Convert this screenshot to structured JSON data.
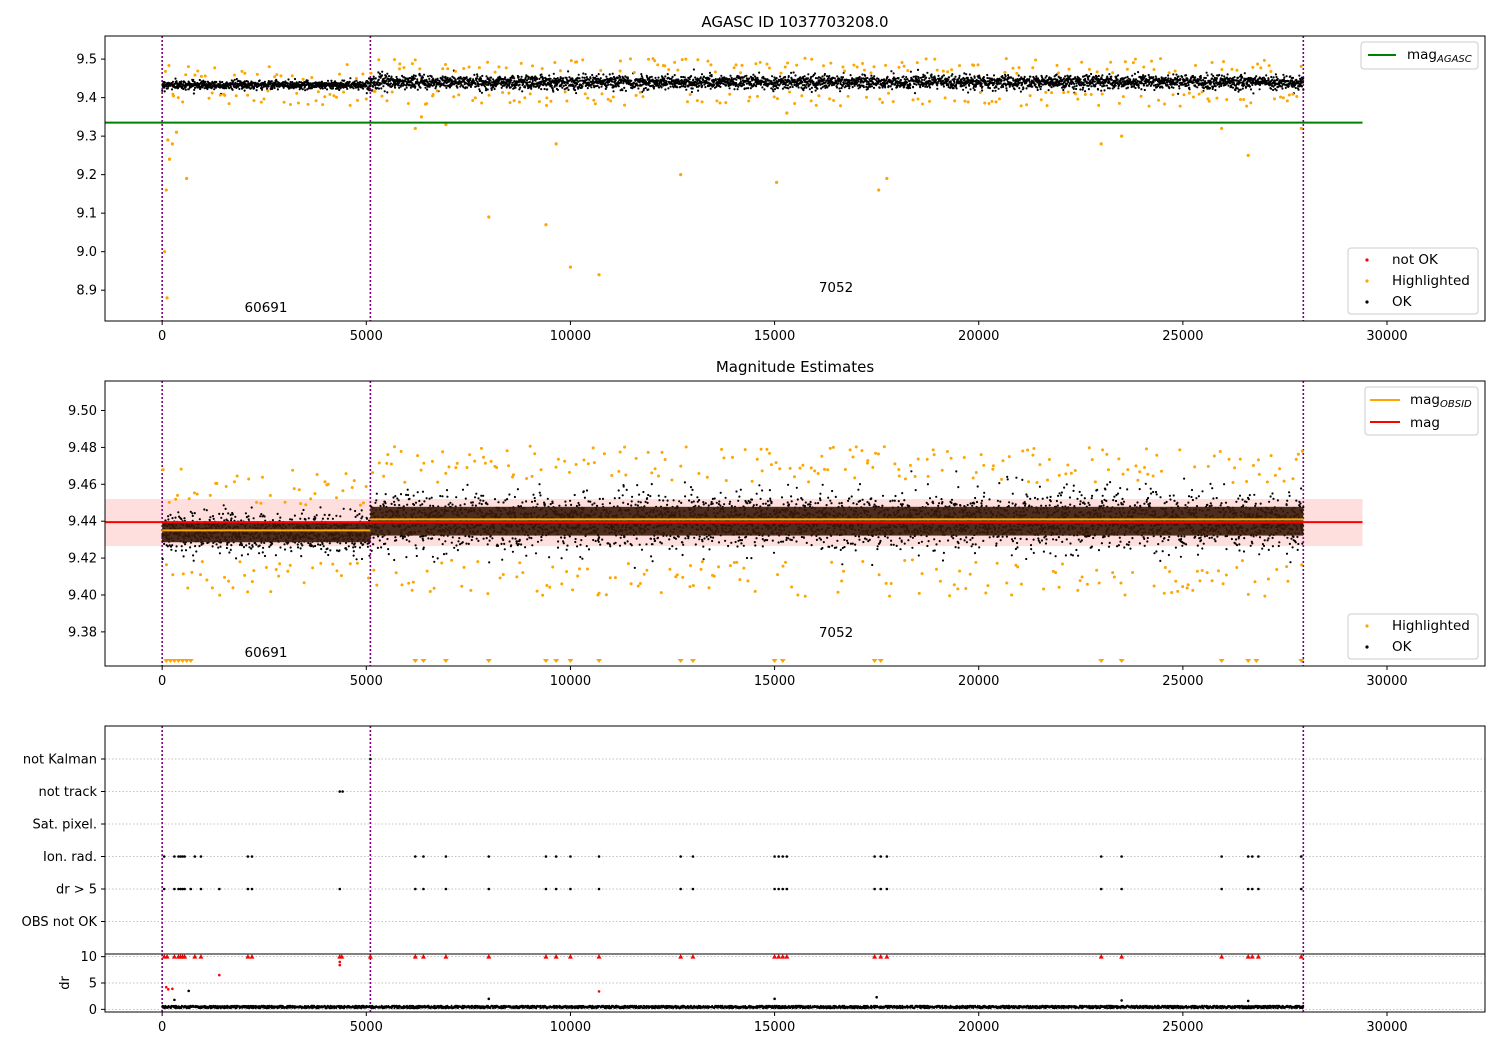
{
  "chart_data": [
    {
      "type": "scatter",
      "title": "AGASC ID 1037703208.0",
      "xlim": [
        -1400,
        32400
      ],
      "ylim": [
        8.82,
        9.56
      ],
      "xticks": [
        0,
        5000,
        10000,
        15000,
        20000,
        25000,
        30000
      ],
      "xtick_labels": [
        "0",
        "5000",
        "10000",
        "15000",
        "20000",
        "25000",
        "30000"
      ],
      "yticks": [
        8.9,
        9.0,
        9.1,
        9.2,
        9.3,
        9.4,
        9.5
      ],
      "ytick_labels": [
        "8.9",
        "9.0",
        "9.1",
        "9.2",
        "9.3",
        "9.4",
        "9.5"
      ],
      "obs_boundaries": [
        0,
        5100,
        27950
      ],
      "agasc_mag": 9.335,
      "agasc_mag_x_range": [
        -1400,
        29400
      ],
      "observations": [
        {
          "x_range": [
            0,
            5100
          ],
          "mean": 9.433,
          "spread": 0.01
        },
        {
          "x_range": [
            5100,
            27950
          ],
          "mean": 9.44,
          "spread": 0.016
        }
      ],
      "highlighted_outliers": [
        [
          60,
          9.0
        ],
        [
          120,
          8.88
        ],
        [
          100,
          9.16
        ],
        [
          180,
          9.24
        ],
        [
          250,
          9.28
        ],
        [
          350,
          9.31
        ],
        [
          600,
          9.19
        ],
        [
          140,
          9.29
        ],
        [
          6200,
          9.32
        ],
        [
          6350,
          9.35
        ],
        [
          6950,
          9.33
        ],
        [
          8000,
          9.09
        ],
        [
          9400,
          9.07
        ],
        [
          9650,
          9.28
        ],
        [
          10000,
          8.96
        ],
        [
          10700,
          8.94
        ],
        [
          12700,
          9.2
        ],
        [
          15050,
          9.18
        ],
        [
          15300,
          9.36
        ],
        [
          17550,
          9.16
        ],
        [
          17750,
          9.19
        ],
        [
          23000,
          9.28
        ],
        [
          23500,
          9.3
        ],
        [
          25950,
          9.32
        ],
        [
          26600,
          9.25
        ],
        [
          27900,
          9.32
        ]
      ],
      "annotations": [
        {
          "text": "60691",
          "x": 2550,
          "y": 8.85
        },
        {
          "text": "7052",
          "x": 16550,
          "y": 8.9
        }
      ],
      "legend_upper": {
        "position": "upper right",
        "entries": [
          {
            "label": "mag",
            "subscript": "AGASC",
            "color": "#008000"
          }
        ]
      },
      "legend_lower": {
        "position": "lower right",
        "entries": [
          {
            "label": "not OK",
            "color": "#ff0000"
          },
          {
            "label": "Highlighted",
            "color": "#ffa500"
          },
          {
            "label": "OK",
            "color": "#000000"
          }
        ]
      }
    },
    {
      "type": "scatter",
      "title": "Magnitude Estimates",
      "xlim": [
        -1400,
        32400
      ],
      "ylim": [
        9.3615,
        9.516
      ],
      "xticks": [
        0,
        5000,
        10000,
        15000,
        20000,
        25000,
        30000
      ],
      "xtick_labels": [
        "0",
        "5000",
        "10000",
        "15000",
        "20000",
        "25000",
        "30000"
      ],
      "yticks": [
        9.38,
        9.4,
        9.42,
        9.44,
        9.46,
        9.48,
        9.5
      ],
      "ytick_labels": [
        "9.38",
        "9.40",
        "9.42",
        "9.44",
        "9.46",
        "9.48",
        "9.50"
      ],
      "obs_boundaries": [
        0,
        5100,
        27950
      ],
      "mag": 9.4395,
      "mag_band": [
        9.4265,
        9.452
      ],
      "mag_x_range": [
        -1400,
        29400
      ],
      "mag_obsid": [
        {
          "x_range": [
            0,
            5100
          ],
          "value": 9.435
        },
        {
          "x_range": [
            5100,
            27950
          ],
          "value": 9.441
        }
      ],
      "observations": [
        {
          "x_range": [
            0,
            5100
          ],
          "mean": 9.434,
          "spread": 0.009
        },
        {
          "x_range": [
            5100,
            27950
          ],
          "mean": 9.44,
          "spread": 0.013
        }
      ],
      "clipped_marker_x": [
        100,
        200,
        300,
        400,
        500,
        600,
        700,
        6200,
        6400,
        6950,
        8000,
        9400,
        9650,
        10000,
        10700,
        12700,
        13000,
        15000,
        15200,
        17450,
        17600,
        23000,
        23500,
        25950,
        26600,
        26800,
        27900
      ],
      "annotations": [
        {
          "text": "60691",
          "x": 2550,
          "y": 9.367
        },
        {
          "text": "7052",
          "x": 16550,
          "y": 9.379
        }
      ],
      "legend_upper": {
        "position": "upper right",
        "entries": [
          {
            "label": "mag",
            "subscript": "OBSID",
            "color": "#ffa500"
          },
          {
            "label": "mag",
            "subscript": "",
            "color": "#ff0000"
          }
        ]
      },
      "legend_lower": {
        "position": "lower right",
        "entries": [
          {
            "label": "Highlighted",
            "color": "#ffa500"
          },
          {
            "label": "OK",
            "color": "#000000"
          }
        ]
      }
    },
    {
      "type": "scatter",
      "title": "",
      "xlim": [
        -1400,
        32400
      ],
      "categories": [
        "not Kalman",
        "not track",
        "Sat. pixel.",
        "Ion. rad.",
        "dr > 5",
        "OBS not OK"
      ],
      "obs_boundaries": [
        0,
        5100,
        27950
      ],
      "flag_points": {
        "not Kalman": [
          5100
        ],
        "not track": [
          4350,
          4420
        ],
        "Sat. pixel.": [],
        "Ion. rad.": [
          50,
          300,
          400,
          450,
          500,
          550,
          800,
          950,
          2100,
          2200,
          6200,
          6400,
          6950,
          8000,
          9400,
          9650,
          10000,
          10700,
          12700,
          13000,
          15000,
          15100,
          15200,
          15300,
          17450,
          17600,
          17750,
          23000,
          23500,
          25950,
          26600,
          26700,
          26850,
          27900
        ],
        "dr > 5": [
          50,
          300,
          400,
          450,
          500,
          550,
          700,
          950,
          1400,
          2100,
          2200,
          4350,
          6200,
          6400,
          6950,
          8000,
          9400,
          9650,
          10000,
          10700,
          12700,
          13000,
          15000,
          15100,
          15200,
          15300,
          17450,
          17600,
          17750,
          23000,
          23500,
          25950,
          26600,
          26700,
          26850,
          27900
        ],
        "OBS not OK": []
      },
      "dr_subplot": {
        "ylabel": "dr",
        "ylim": [
          -0.5,
          10.5
        ],
        "yticks": [
          0,
          5,
          10
        ],
        "ytick_labels": [
          "0",
          "5",
          "10"
        ],
        "xticks": [
          0,
          5000,
          10000,
          15000,
          20000,
          25000,
          30000
        ],
        "xtick_labels": [
          "0",
          "5000",
          "10000",
          "15000",
          "20000",
          "25000",
          "30000"
        ],
        "capped_value": 10,
        "capped_x": [
          50,
          120,
          300,
          400,
          450,
          500,
          550,
          800,
          950,
          2100,
          2200,
          4350,
          4400,
          5100,
          6200,
          6400,
          6950,
          8000,
          9400,
          9650,
          10000,
          10700,
          12700,
          13000,
          15000,
          15100,
          15200,
          15300,
          17450,
          17600,
          17750,
          23000,
          23500,
          25950,
          26600,
          26700,
          26850,
          27900
        ],
        "red_points": [
          [
            100,
            4.2
          ],
          [
            150,
            3.8
          ],
          [
            250,
            3.9
          ],
          [
            1400,
            6.5
          ],
          [
            10700,
            3.4
          ],
          [
            4350,
            9.0
          ],
          [
            4350,
            8.4
          ]
        ],
        "black_points": [
          [
            300,
            1.8
          ],
          [
            650,
            3.5
          ],
          [
            8000,
            2.0
          ],
          [
            15000,
            2.0
          ],
          [
            17500,
            2.3
          ],
          [
            23500,
            1.7
          ],
          [
            26600,
            1.6
          ]
        ]
      }
    }
  ]
}
